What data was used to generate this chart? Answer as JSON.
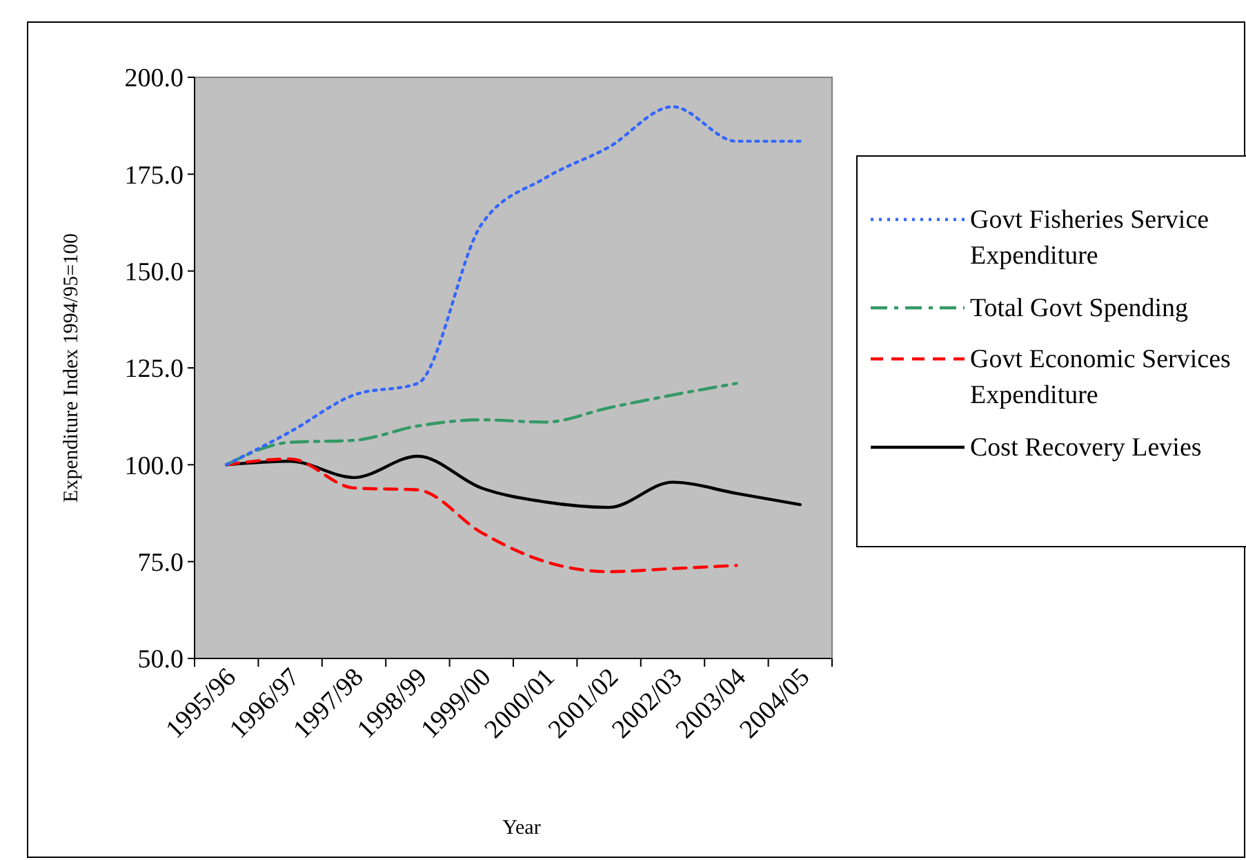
{
  "chart_data": {
    "type": "line",
    "xlabel": "Year",
    "ylabel": "Expenditure Index 1994/95=100",
    "categories": [
      "1995/96",
      "1996/97",
      "1997/98",
      "1998/99",
      "1999/00",
      "2000/01",
      "2001/02",
      "2002/03",
      "2003/04",
      "2004/05"
    ],
    "ylim": [
      50,
      200
    ],
    "yticks": [
      {
        "value": 50,
        "label": "50.0"
      },
      {
        "value": 75,
        "label": "75.0"
      },
      {
        "value": 100,
        "label": "100.0"
      },
      {
        "value": 125,
        "label": "125.0"
      },
      {
        "value": 150,
        "label": "150.0"
      },
      {
        "value": 175,
        "label": "175.0"
      },
      {
        "value": 200,
        "label": "200.0"
      }
    ],
    "grid": false,
    "legend": "right",
    "marker": "none",
    "series": [
      {
        "name": "Govt Fisheries Service Expenditure",
        "color": "#3366ff",
        "line_style": "dotted",
        "values": [
          100,
          108.5,
          118,
          121,
          162,
          174,
          182,
          192.4,
          183.5,
          183.5
        ]
      },
      {
        "name": "Total Govt Spending",
        "color": "#339966",
        "line_style": "dashdot",
        "values": [
          100,
          105.8,
          106.3,
          110,
          111.6,
          111,
          114.7,
          118,
          121,
          null
        ]
      },
      {
        "name": "Govt Economic Services Expenditure",
        "color": "#ff0000",
        "line_style": "dashed",
        "values": [
          100,
          101.5,
          94,
          93.5,
          82.5,
          75,
          72.4,
          73.2,
          74,
          null
        ]
      },
      {
        "name": "Cost Recovery Levies",
        "color": "#000000",
        "line_style": "solid",
        "values": [
          100,
          100.9,
          96.7,
          102.2,
          94,
          90.4,
          89,
          95.5,
          92.6,
          89.7
        ]
      }
    ]
  }
}
